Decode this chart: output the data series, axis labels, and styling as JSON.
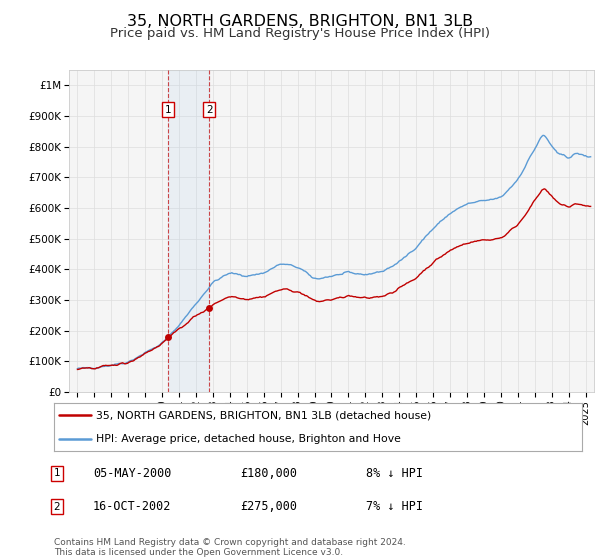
{
  "title": "35, NORTH GARDENS, BRIGHTON, BN1 3LB",
  "subtitle": "Price paid vs. HM Land Registry's House Price Index (HPI)",
  "title_fontsize": 11.5,
  "subtitle_fontsize": 9.5,
  "hpi_color": "#5b9bd5",
  "price_color": "#c00000",
  "bg_color": "#f5f5f5",
  "grid_color": "#dddddd",
  "transactions": [
    {
      "label": "1",
      "year": 2000.35,
      "price": 180000,
      "date": "05-MAY-2000",
      "pct": "8% ↓ HPI"
    },
    {
      "label": "2",
      "year": 2002.79,
      "price": 275000,
      "date": "16-OCT-2002",
      "pct": "7% ↓ HPI"
    }
  ],
  "legend_line1": "35, NORTH GARDENS, BRIGHTON, BN1 3LB (detached house)",
  "legend_line2": "HPI: Average price, detached house, Brighton and Hove",
  "footnote": "Contains HM Land Registry data © Crown copyright and database right 2024.\nThis data is licensed under the Open Government Licence v3.0.",
  "ylim": [
    0,
    1050000
  ],
  "xlim": [
    1994.5,
    2025.5
  ]
}
